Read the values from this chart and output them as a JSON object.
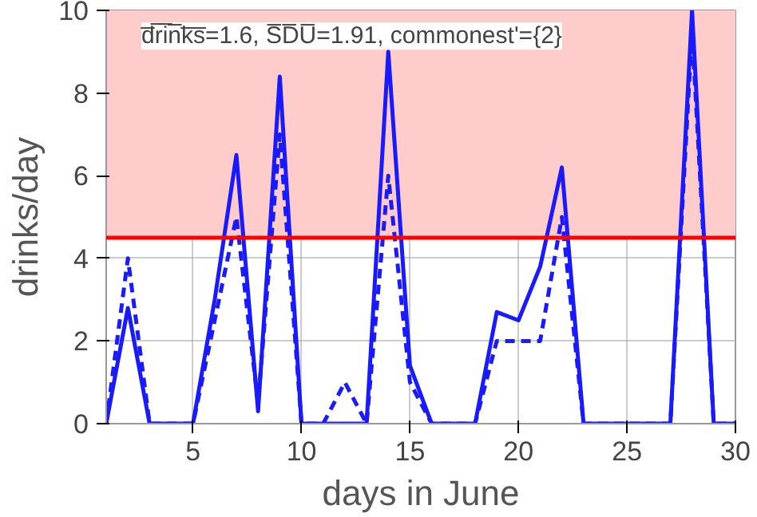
{
  "chart_data": {
    "type": "line",
    "xlabel": "days in June",
    "ylabel": "drinks/day",
    "annotations": [
      "d̅r̅i̅n̅k̅s̅=1.6, S̅D̅U̅=1.91, commonest'={2}"
    ],
    "x": [
      1,
      2,
      3,
      4,
      5,
      6,
      7,
      8,
      9,
      10,
      11,
      12,
      13,
      14,
      15,
      16,
      17,
      18,
      19,
      20,
      21,
      22,
      23,
      24,
      25,
      26,
      27,
      28,
      29,
      30
    ],
    "series": [
      {
        "color": "#1a1aff",
        "line_style": "solid",
        "values": [
          0,
          2.8,
          0,
          0,
          0,
          3,
          6.5,
          0.3,
          8.4,
          0,
          0,
          0,
          0,
          9,
          1.4,
          0,
          0,
          0,
          2.7,
          2.5,
          3.8,
          6.2,
          0,
          0,
          0,
          0,
          0,
          10,
          0,
          0
        ]
      },
      {
        "color": "#1a1aff",
        "line_style": "dashed",
        "values": [
          0,
          4,
          0,
          0,
          0,
          2.5,
          5,
          0.5,
          7,
          0,
          0,
          1,
          0,
          6,
          1,
          0,
          0,
          0,
          2,
          2,
          2,
          5,
          0,
          0,
          0,
          0,
          0,
          9.5,
          0,
          0
        ]
      }
    ],
    "xlim": [
      1,
      30
    ],
    "ylim": [
      0,
      10
    ],
    "xticks": [
      5,
      10,
      15,
      20,
      25,
      30
    ],
    "yticks": [
      0,
      2,
      4,
      6,
      8,
      10
    ],
    "grid": true,
    "ref_lines": [
      {
        "axis": "y",
        "value": 4.5,
        "color": "#ff0000"
      }
    ],
    "bands": [
      {
        "axis": "y",
        "from": 4.5,
        "to": 10,
        "color": "#ffcccc"
      }
    ]
  }
}
